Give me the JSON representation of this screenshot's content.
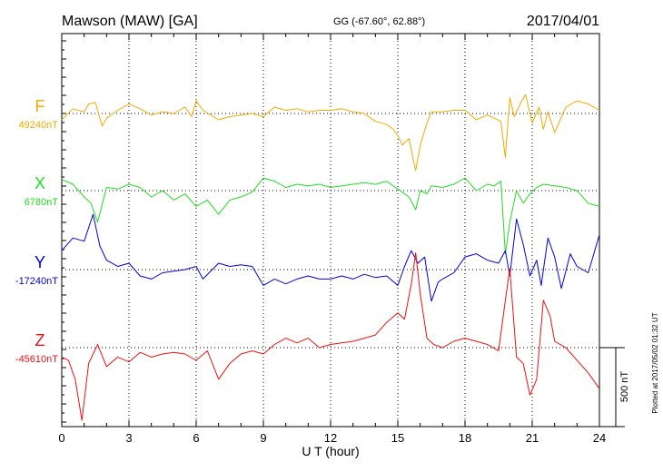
{
  "header": {
    "station": "Mawson (MAW)  [GA]",
    "coords": "GG (-67.60°,  62.88°)",
    "date": "2017/04/01"
  },
  "footer": {
    "plotted": "Plotted at 2017/05/02 01:32 UT",
    "scale_label": "500 nT"
  },
  "chart_data": {
    "type": "line",
    "xlabel": "U T (hour)",
    "xlim": [
      0,
      24
    ],
    "xticks": [
      "0",
      "3",
      "6",
      "9",
      "12",
      "15",
      "18",
      "21",
      "24"
    ],
    "scale_bar_nT": 500,
    "grid": "dotted vertical every 3 h, dotted baseline per component",
    "series": [
      {
        "name": "F",
        "baseline_label": "49240nT",
        "color": "#f5a800",
        "x": [
          0,
          0.5,
          1,
          1.2,
          1.5,
          1.8,
          2,
          2.5,
          3,
          3.5,
          4,
          4.5,
          5,
          5.5,
          5.8,
          6,
          6.3,
          7,
          7.5,
          8,
          8.5,
          9,
          9.5,
          10,
          10.5,
          11,
          11.5,
          12,
          12.5,
          13,
          13.5,
          14,
          14.5,
          14.8,
          15,
          15.2,
          15.5,
          15.7,
          15.8,
          16,
          16.3,
          16.5,
          17,
          17.5,
          18,
          18.5,
          19,
          19.3,
          19.6,
          19.8,
          20,
          20.2,
          20.5,
          20.7,
          21,
          21.3,
          21.5,
          21.7,
          22,
          22.5,
          23,
          23.5,
          24
        ],
        "values": [
          -40,
          30,
          10,
          60,
          70,
          -80,
          -30,
          20,
          60,
          30,
          -10,
          10,
          0,
          40,
          -20,
          80,
          20,
          -40,
          -20,
          -10,
          0,
          -20,
          40,
          20,
          30,
          10,
          20,
          20,
          30,
          10,
          0,
          -50,
          -70,
          -100,
          -140,
          -200,
          -160,
          -300,
          -360,
          -200,
          -60,
          10,
          10,
          20,
          20,
          -40,
          -10,
          -30,
          -50,
          -280,
          100,
          -20,
          70,
          120,
          -60,
          40,
          -100,
          10,
          -120,
          40,
          80,
          60,
          20
        ]
      },
      {
        "name": "X",
        "baseline_label": "6780nT",
        "color": "#22dd22",
        "x": [
          0,
          0.5,
          1,
          1.3,
          1.6,
          2,
          2.5,
          3,
          3.5,
          4,
          4.5,
          5,
          5.5,
          6,
          6.5,
          7,
          7.5,
          8,
          8.5,
          9,
          9.5,
          10,
          10.5,
          11,
          11.5,
          12,
          12.5,
          13,
          13.5,
          14,
          14.5,
          15,
          15.5,
          15.8,
          16,
          16.3,
          16.5,
          17,
          17.5,
          18,
          18.5,
          19,
          19.3,
          19.6,
          19.8,
          20,
          20.3,
          20.6,
          20.9,
          21.2,
          21.5,
          22,
          22.5,
          23,
          23.5,
          24
        ],
        "values": [
          70,
          40,
          -40,
          -80,
          -200,
          20,
          10,
          40,
          20,
          -40,
          0,
          -60,
          -20,
          -100,
          -60,
          -150,
          -60,
          -40,
          -10,
          80,
          60,
          20,
          40,
          30,
          40,
          20,
          30,
          40,
          50,
          40,
          60,
          10,
          -40,
          -120,
          0,
          -20,
          30,
          20,
          40,
          80,
          0,
          40,
          30,
          60,
          -400,
          -200,
          0,
          -80,
          -20,
          20,
          40,
          30,
          20,
          0,
          -80,
          -100
        ]
      },
      {
        "name": "Y",
        "baseline_label": "-17240nT",
        "color": "#0000dd",
        "x": [
          0,
          0.5,
          1,
          1.4,
          1.7,
          2,
          2.5,
          3,
          3.5,
          4,
          4.5,
          5,
          5.5,
          6,
          6.3,
          7,
          7.5,
          8,
          8.5,
          9,
          9.5,
          10,
          10.5,
          11,
          11.5,
          12,
          12.5,
          13,
          13.5,
          14,
          14.5,
          15,
          15.3,
          15.6,
          15.9,
          16.2,
          16.5,
          16.8,
          17,
          17.5,
          18,
          18.5,
          19,
          19.5,
          19.8,
          20,
          20.3,
          20.6,
          20.9,
          21.2,
          21.4,
          21.7,
          22,
          22.3,
          22.7,
          23,
          23.5,
          24
        ],
        "values": [
          120,
          200,
          180,
          350,
          150,
          60,
          20,
          40,
          -40,
          -60,
          -20,
          -10,
          0,
          20,
          -60,
          40,
          20,
          30,
          20,
          -100,
          -60,
          -90,
          -60,
          -40,
          -60,
          -60,
          -40,
          -60,
          -30,
          -50,
          -40,
          -100,
          20,
          120,
          40,
          80,
          -200,
          -80,
          -60,
          -20,
          80,
          100,
          60,
          40,
          120,
          -40,
          320,
          160,
          -40,
          60,
          -100,
          200,
          80,
          -120,
          100,
          20,
          -20,
          220
        ]
      },
      {
        "name": "Z",
        "baseline_label": "-45610nT",
        "color": "#ee1111",
        "x": [
          0,
          0.3,
          0.6,
          0.9,
          1.2,
          1.6,
          2,
          2.5,
          3,
          3.5,
          4,
          4.5,
          5,
          5.5,
          6,
          6.5,
          7,
          7.5,
          8,
          8.5,
          9,
          9.5,
          10,
          10.5,
          11,
          11.5,
          12,
          12.5,
          13,
          13.5,
          14,
          14.5,
          15,
          15.3,
          15.6,
          15.8,
          16,
          16.3,
          16.6,
          17,
          17.5,
          18,
          18.5,
          19,
          19.5,
          19.8,
          20,
          20.3,
          20.6,
          20.9,
          21.2,
          21.5,
          21.8,
          22,
          22.5,
          23,
          23.5,
          24
        ],
        "values": [
          -60,
          -80,
          -200,
          -460,
          -100,
          20,
          -120,
          -60,
          -90,
          -30,
          -60,
          -40,
          -30,
          -40,
          -80,
          -20,
          -200,
          -100,
          -40,
          -20,
          -40,
          20,
          60,
          30,
          60,
          0,
          20,
          30,
          40,
          60,
          80,
          160,
          220,
          180,
          400,
          600,
          340,
          60,
          20,
          0,
          40,
          60,
          40,
          20,
          -20,
          300,
          500,
          -60,
          -100,
          -300,
          -200,
          300,
          200,
          40,
          0,
          -80,
          -160,
          -260
        ]
      }
    ]
  }
}
